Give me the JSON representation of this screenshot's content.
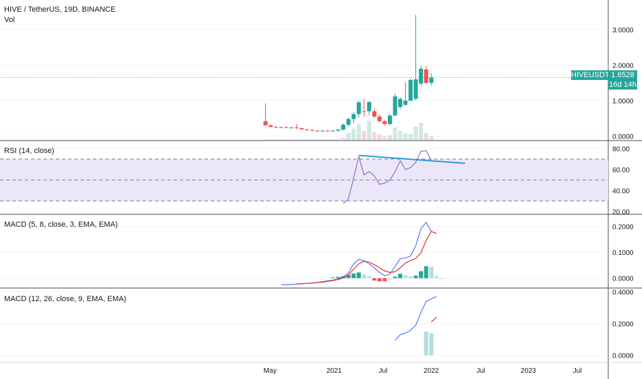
{
  "header": {
    "symbol_line": "HIVE / TetherUS, 19D, BINANCE",
    "volume_label": "Vol"
  },
  "price_label": {
    "name": "HIVEUSDT",
    "value": "1.6528",
    "countdown": "16d 14h"
  },
  "colors": {
    "up": "#26a69a",
    "down": "#ef5350",
    "vol_up": "#cfe8e4",
    "vol_down": "#f6d6d6",
    "rsi_line": "#7e57c2",
    "rsi_band": "#ece7f8",
    "trendline": "#2f9bd8",
    "macd_line": "#2962ff",
    "signal_line": "#e53935",
    "hist_up": "#b2dfdb",
    "hist_up_strong": "#26a69a",
    "hist_down": "#ffcdd2",
    "hist_down_strong": "#ef5350"
  },
  "time_axis": [
    "May",
    "2021",
    "Jul",
    "2022",
    "Jul",
    "2023",
    "Jul"
  ],
  "chart_data": [
    {
      "type": "candlestick",
      "title": "HIVE / TetherUS, 19D, BINANCE",
      "ylim": [
        -0.05,
        3.8
      ],
      "y_ticks": [
        "3.0000",
        "2.0000",
        "1.0000",
        "0.0000"
      ],
      "y_tick_values": [
        3.0,
        2.0,
        1.0,
        0.0
      ],
      "candles": [
        {
          "o": 0.42,
          "h": 0.92,
          "l": 0.3,
          "c": 0.3
        },
        {
          "o": 0.3,
          "h": 0.34,
          "l": 0.24,
          "c": 0.26
        },
        {
          "o": 0.26,
          "h": 0.29,
          "l": 0.22,
          "c": 0.24
        },
        {
          "o": 0.24,
          "h": 0.27,
          "l": 0.22,
          "c": 0.25
        },
        {
          "o": 0.25,
          "h": 0.28,
          "l": 0.22,
          "c": 0.23
        },
        {
          "o": 0.23,
          "h": 0.26,
          "l": 0.21,
          "c": 0.24
        },
        {
          "o": 0.24,
          "h": 0.34,
          "l": 0.2,
          "c": 0.22
        },
        {
          "o": 0.22,
          "h": 0.24,
          "l": 0.17,
          "c": 0.19
        },
        {
          "o": 0.19,
          "h": 0.21,
          "l": 0.15,
          "c": 0.17
        },
        {
          "o": 0.17,
          "h": 0.19,
          "l": 0.13,
          "c": 0.15
        },
        {
          "o": 0.15,
          "h": 0.17,
          "l": 0.13,
          "c": 0.14
        },
        {
          "o": 0.14,
          "h": 0.17,
          "l": 0.12,
          "c": 0.15
        },
        {
          "o": 0.15,
          "h": 0.18,
          "l": 0.13,
          "c": 0.14
        },
        {
          "o": 0.14,
          "h": 0.18,
          "l": 0.12,
          "c": 0.15
        },
        {
          "o": 0.15,
          "h": 0.19,
          "l": 0.13,
          "c": 0.18
        },
        {
          "o": 0.18,
          "h": 0.36,
          "l": 0.16,
          "c": 0.32
        },
        {
          "o": 0.32,
          "h": 0.52,
          "l": 0.26,
          "c": 0.48
        },
        {
          "o": 0.48,
          "h": 0.68,
          "l": 0.36,
          "c": 0.62
        },
        {
          "o": 0.62,
          "h": 1.0,
          "l": 0.52,
          "c": 0.95
        },
        {
          "o": 0.7,
          "h": 1.05,
          "l": 0.55,
          "c": 0.68
        },
        {
          "o": 0.7,
          "h": 0.98,
          "l": 0.58,
          "c": 0.96
        },
        {
          "o": 0.7,
          "h": 0.78,
          "l": 0.5,
          "c": 0.55
        },
        {
          "o": 0.55,
          "h": 0.62,
          "l": 0.4,
          "c": 0.42
        },
        {
          "o": 0.42,
          "h": 0.45,
          "l": 0.3,
          "c": 0.34
        },
        {
          "o": 0.34,
          "h": 0.62,
          "l": 0.3,
          "c": 0.58
        },
        {
          "o": 0.58,
          "h": 1.2,
          "l": 0.56,
          "c": 1.12
        },
        {
          "o": 0.82,
          "h": 1.1,
          "l": 0.76,
          "c": 1.05
        },
        {
          "o": 0.88,
          "h": 1.52,
          "l": 0.86,
          "c": 1.0
        },
        {
          "o": 1.0,
          "h": 1.62,
          "l": 0.98,
          "c": 1.58
        },
        {
          "o": 1.05,
          "h": 3.42,
          "l": 1.0,
          "c": 1.6
        },
        {
          "o": 1.48,
          "h": 1.98,
          "l": 1.4,
          "c": 1.9
        },
        {
          "o": 1.88,
          "h": 1.98,
          "l": 1.48,
          "c": 1.5
        },
        {
          "o": 1.5,
          "h": 1.78,
          "l": 1.42,
          "c": 1.65
        }
      ],
      "volume": [
        0.2,
        0.3,
        0.25,
        0.2,
        0.25,
        0.25,
        0.3,
        0.2,
        0.3,
        0.25,
        0.2,
        0.25,
        0.2,
        0.25,
        0.3,
        1.0,
        3.0,
        5.0,
        7.0,
        4.0,
        8.5,
        3.5,
        2.5,
        1.5,
        2.0,
        5.5,
        4.0,
        3.0,
        2.5,
        6.0,
        7.5,
        3.0,
        1.5
      ]
    },
    {
      "type": "line",
      "title": "RSI (14, close)",
      "ylim": [
        18,
        87
      ],
      "y_ticks": [
        "80.00",
        "60.00",
        "40.00",
        "20.00"
      ],
      "y_tick_values": [
        80,
        60,
        40,
        20
      ],
      "band": [
        30,
        70
      ],
      "mid": 50,
      "start_index": 15,
      "values": [
        27.5,
        32,
        52,
        72.5,
        55,
        58,
        54,
        46,
        47,
        50,
        58,
        68.5,
        60,
        62,
        67,
        77.5,
        78,
        69
      ],
      "trendline": {
        "from": {
          "i": 18,
          "v": 73.5
        },
        "to": {
          "i": 38.5,
          "v": 66
        }
      }
    },
    {
      "type": "macd",
      "title": "MACD (5, 8, close, 3, EMA, EMA)",
      "ylim": [
        -0.022,
        0.238
      ],
      "y_ticks": [
        "0.2000",
        "0.1000",
        "0.0000"
      ],
      "y_tick_values": [
        0.2,
        0.1,
        0.0
      ],
      "macd_start": 3,
      "macd": [
        -0.025,
        -0.025,
        -0.024,
        -0.023,
        -0.022,
        -0.02,
        -0.018,
        -0.016,
        -0.013,
        -0.01,
        -0.007,
        -0.003,
        0.005,
        0.02,
        0.055,
        0.072,
        0.068,
        0.055,
        0.04,
        0.022,
        0.01,
        0.015,
        0.045,
        0.075,
        0.078,
        0.085,
        0.125,
        0.19,
        0.215,
        0.18
      ],
      "signal_start": 6,
      "signal": [
        -0.022,
        -0.021,
        -0.02,
        -0.019,
        -0.017,
        -0.015,
        -0.012,
        -0.009,
        -0.005,
        0.001,
        0.012,
        0.035,
        0.055,
        0.065,
        0.062,
        0.052,
        0.04,
        0.028,
        0.022,
        0.025,
        0.04,
        0.058,
        0.068,
        0.076,
        0.098,
        0.145,
        0.18,
        0.172
      ],
      "hist_start": 13,
      "hist": [
        0.003,
        0.005,
        0.008,
        0.012,
        0.018,
        0.022,
        0.015,
        0.007,
        -0.009,
        -0.012,
        -0.012,
        -0.006,
        0.006,
        0.017,
        0.012,
        0.007,
        0.01,
        0.027,
        0.046,
        0.043,
        0.008,
        -0.003
      ]
    },
    {
      "type": "macd",
      "title": "MACD (12, 26, close, 9, EMA, EMA)",
      "ylim": [
        -0.01,
        0.415
      ],
      "y_ticks": [
        "0.4000",
        "0.2000",
        "0.0000"
      ],
      "y_tick_values": [
        0.4,
        0.2,
        0.0
      ],
      "macd_start": 25,
      "macd": [
        0.095,
        0.13,
        0.14,
        0.158,
        0.19,
        0.27,
        0.34,
        0.355,
        0.37
      ],
      "signal_start": 32,
      "signal": [
        0.21,
        0.24
      ],
      "hist_start": 31,
      "hist": [
        0.15,
        0.14
      ]
    }
  ]
}
